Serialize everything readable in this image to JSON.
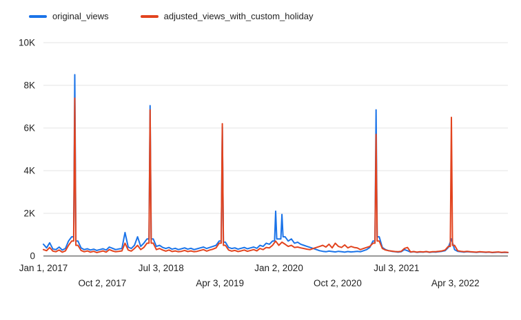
{
  "chart_data": {
    "type": "line",
    "title": "",
    "xlabel": "",
    "ylabel": "",
    "xlim": [
      2017.0,
      2022.92
    ],
    "ylim": [
      0,
      10000
    ],
    "grid": true,
    "legend_position": "top-left",
    "x_start": 2017.0,
    "x_step": 0.04,
    "x_ticks": [
      {
        "t": 2017.0,
        "label": "Jan 1, 2017",
        "row": 0
      },
      {
        "t": 2017.75,
        "label": "Oct 2, 2017",
        "row": 1
      },
      {
        "t": 2018.5,
        "label": "Jul 3, 2018",
        "row": 0
      },
      {
        "t": 2019.25,
        "label": "Apr 3, 2019",
        "row": 1
      },
      {
        "t": 2020.0,
        "label": "Jan 2, 2020",
        "row": 0
      },
      {
        "t": 2020.75,
        "label": "Oct 2, 2020",
        "row": 1
      },
      {
        "t": 2021.5,
        "label": "Jul 3, 2021",
        "row": 0
      },
      {
        "t": 2022.25,
        "label": "Apr 3, 2022",
        "row": 1
      }
    ],
    "y_ticks": [
      {
        "v": 0,
        "label": "0"
      },
      {
        "v": 2000,
        "label": "2K"
      },
      {
        "v": 4000,
        "label": "4K"
      },
      {
        "v": 6000,
        "label": "6K"
      },
      {
        "v": 8000,
        "label": "8K"
      },
      {
        "v": 10000,
        "label": "10K"
      }
    ],
    "series": [
      {
        "name": "original_views",
        "color": "#1a73e8",
        "values": [
          550,
          380,
          620,
          330,
          300,
          420,
          280,
          350,
          700,
          900,
          8500,
          700,
          380,
          300,
          340,
          280,
          320,
          260,
          300,
          340,
          280,
          420,
          360,
          300,
          330,
          350,
          1100,
          420,
          350,
          500,
          900,
          450,
          600,
          800,
          7050,
          800,
          450,
          500,
          400,
          350,
          400,
          320,
          360,
          300,
          340,
          380,
          320,
          360,
          300,
          340,
          380,
          420,
          350,
          400,
          450,
          500,
          700,
          6050,
          650,
          400,
          350,
          380,
          320,
          360,
          400,
          340,
          380,
          420,
          360,
          500,
          450,
          600,
          550,
          700,
          2100,
          800,
          1950,
          900,
          700,
          800,
          600,
          650,
          550,
          500,
          450,
          400,
          350,
          300,
          250,
          220,
          200,
          230,
          210,
          190,
          220,
          200,
          180,
          210,
          190,
          200,
          220,
          200,
          250,
          300,
          400,
          700,
          6850,
          900,
          400,
          300,
          250,
          220,
          200,
          180,
          200,
          300,
          250,
          180,
          200,
          170,
          190,
          180,
          200,
          170,
          190,
          180,
          200,
          220,
          250,
          400,
          800,
          300,
          220,
          200,
          180,
          200,
          190,
          180,
          170,
          190,
          180,
          170,
          180,
          160,
          170,
          180,
          160,
          170,
          160
        ]
      },
      {
        "name": "adjusted_views_with_custom_holiday",
        "color": "#e2431e",
        "values": [
          300,
          250,
          400,
          230,
          200,
          280,
          180,
          240,
          500,
          700,
          7400,
          500,
          260,
          200,
          240,
          180,
          220,
          160,
          200,
          240,
          180,
          300,
          240,
          200,
          220,
          240,
          600,
          280,
          230,
          350,
          500,
          300,
          400,
          600,
          6850,
          600,
          300,
          350,
          280,
          230,
          280,
          210,
          240,
          200,
          220,
          260,
          210,
          240,
          200,
          220,
          260,
          300,
          230,
          280,
          320,
          380,
          600,
          6200,
          500,
          280,
          230,
          260,
          210,
          240,
          280,
          220,
          260,
          300,
          240,
          350,
          300,
          400,
          380,
          500,
          700,
          500,
          650,
          550,
          450,
          500,
          400,
          420,
          380,
          350,
          320,
          300,
          350,
          400,
          450,
          500,
          420,
          550,
          380,
          600,
          450,
          400,
          520,
          380,
          450,
          400,
          380,
          300,
          350,
          400,
          450,
          600,
          5700,
          700,
          350,
          280,
          250,
          230,
          210,
          200,
          220,
          350,
          400,
          190,
          210,
          180,
          200,
          190,
          210,
          180,
          200,
          200,
          220,
          240,
          280,
          450,
          6500,
          500,
          250,
          220,
          200,
          220,
          200,
          190,
          180,
          200,
          190,
          180,
          190,
          170,
          180,
          190,
          170,
          180,
          170
        ]
      }
    ],
    "colors": {
      "axis_line": "#333333",
      "gridline": "#e3e3e3",
      "tick_text": "#1f1f1f"
    }
  }
}
